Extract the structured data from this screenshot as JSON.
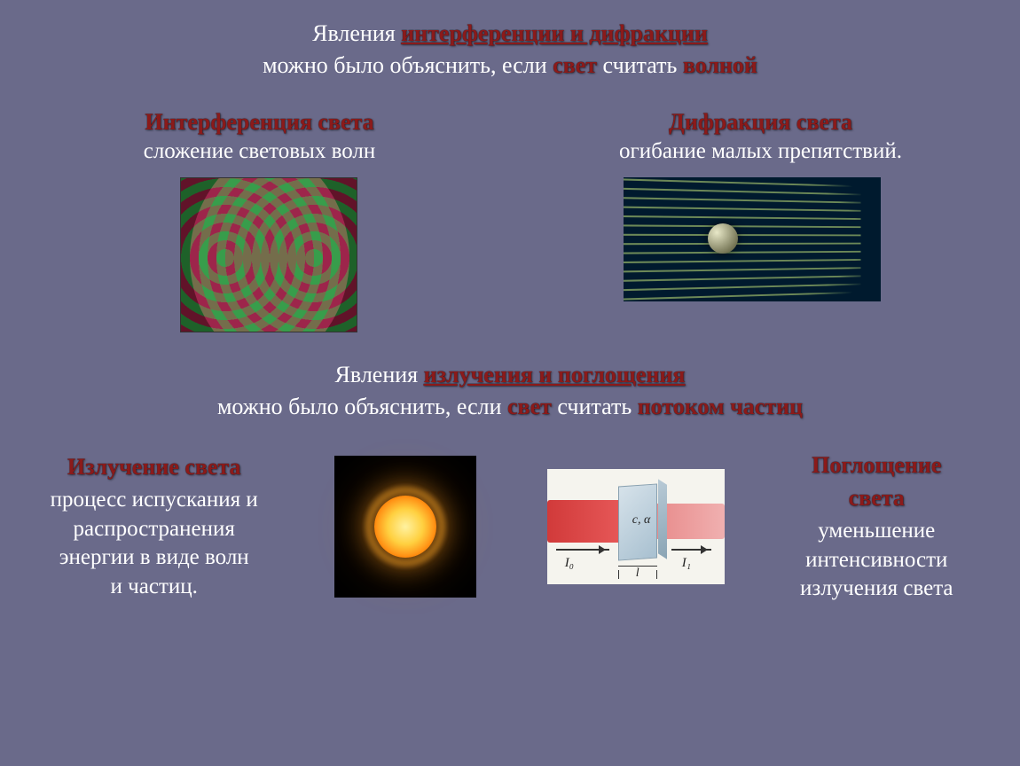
{
  "header1": {
    "part1": "Явления ",
    "part2": "интерференции и дифракции",
    "line2_a": "можно было объяснить, если ",
    "line2_b": "свет",
    "line2_c": " считать ",
    "line2_d": "волной"
  },
  "block_interf": {
    "title": "Интерференция света",
    "desc": "сложение световых волн"
  },
  "block_diffr": {
    "title": "Дифракция света",
    "desc": "огибание малых препятствий."
  },
  "header2": {
    "part1": "Явления ",
    "part2": "излучения и поглощения",
    "line2_a": "можно было объяснить, если ",
    "line2_b": "свет",
    "line2_c": " считать ",
    "line2_d": "потоком частиц"
  },
  "block_emit": {
    "title": "Излучение света",
    "line1": "процесс испускания и",
    "line2": "распространения",
    "line3": "энергии в виде волн",
    "line4": "и частиц."
  },
  "block_abs": {
    "title1": "Поглощение",
    "title2": "света",
    "line1": "уменьшение",
    "line2": "интенсивности",
    "line3": "излучения света"
  },
  "absorb_labels": {
    "ca": "c, α",
    "i0": "I₀",
    "i1": "I₁",
    "l": "l"
  },
  "colors": {
    "bg": "#6a6a8a",
    "text": "#ffffff",
    "accent": "#8b1a1a"
  }
}
